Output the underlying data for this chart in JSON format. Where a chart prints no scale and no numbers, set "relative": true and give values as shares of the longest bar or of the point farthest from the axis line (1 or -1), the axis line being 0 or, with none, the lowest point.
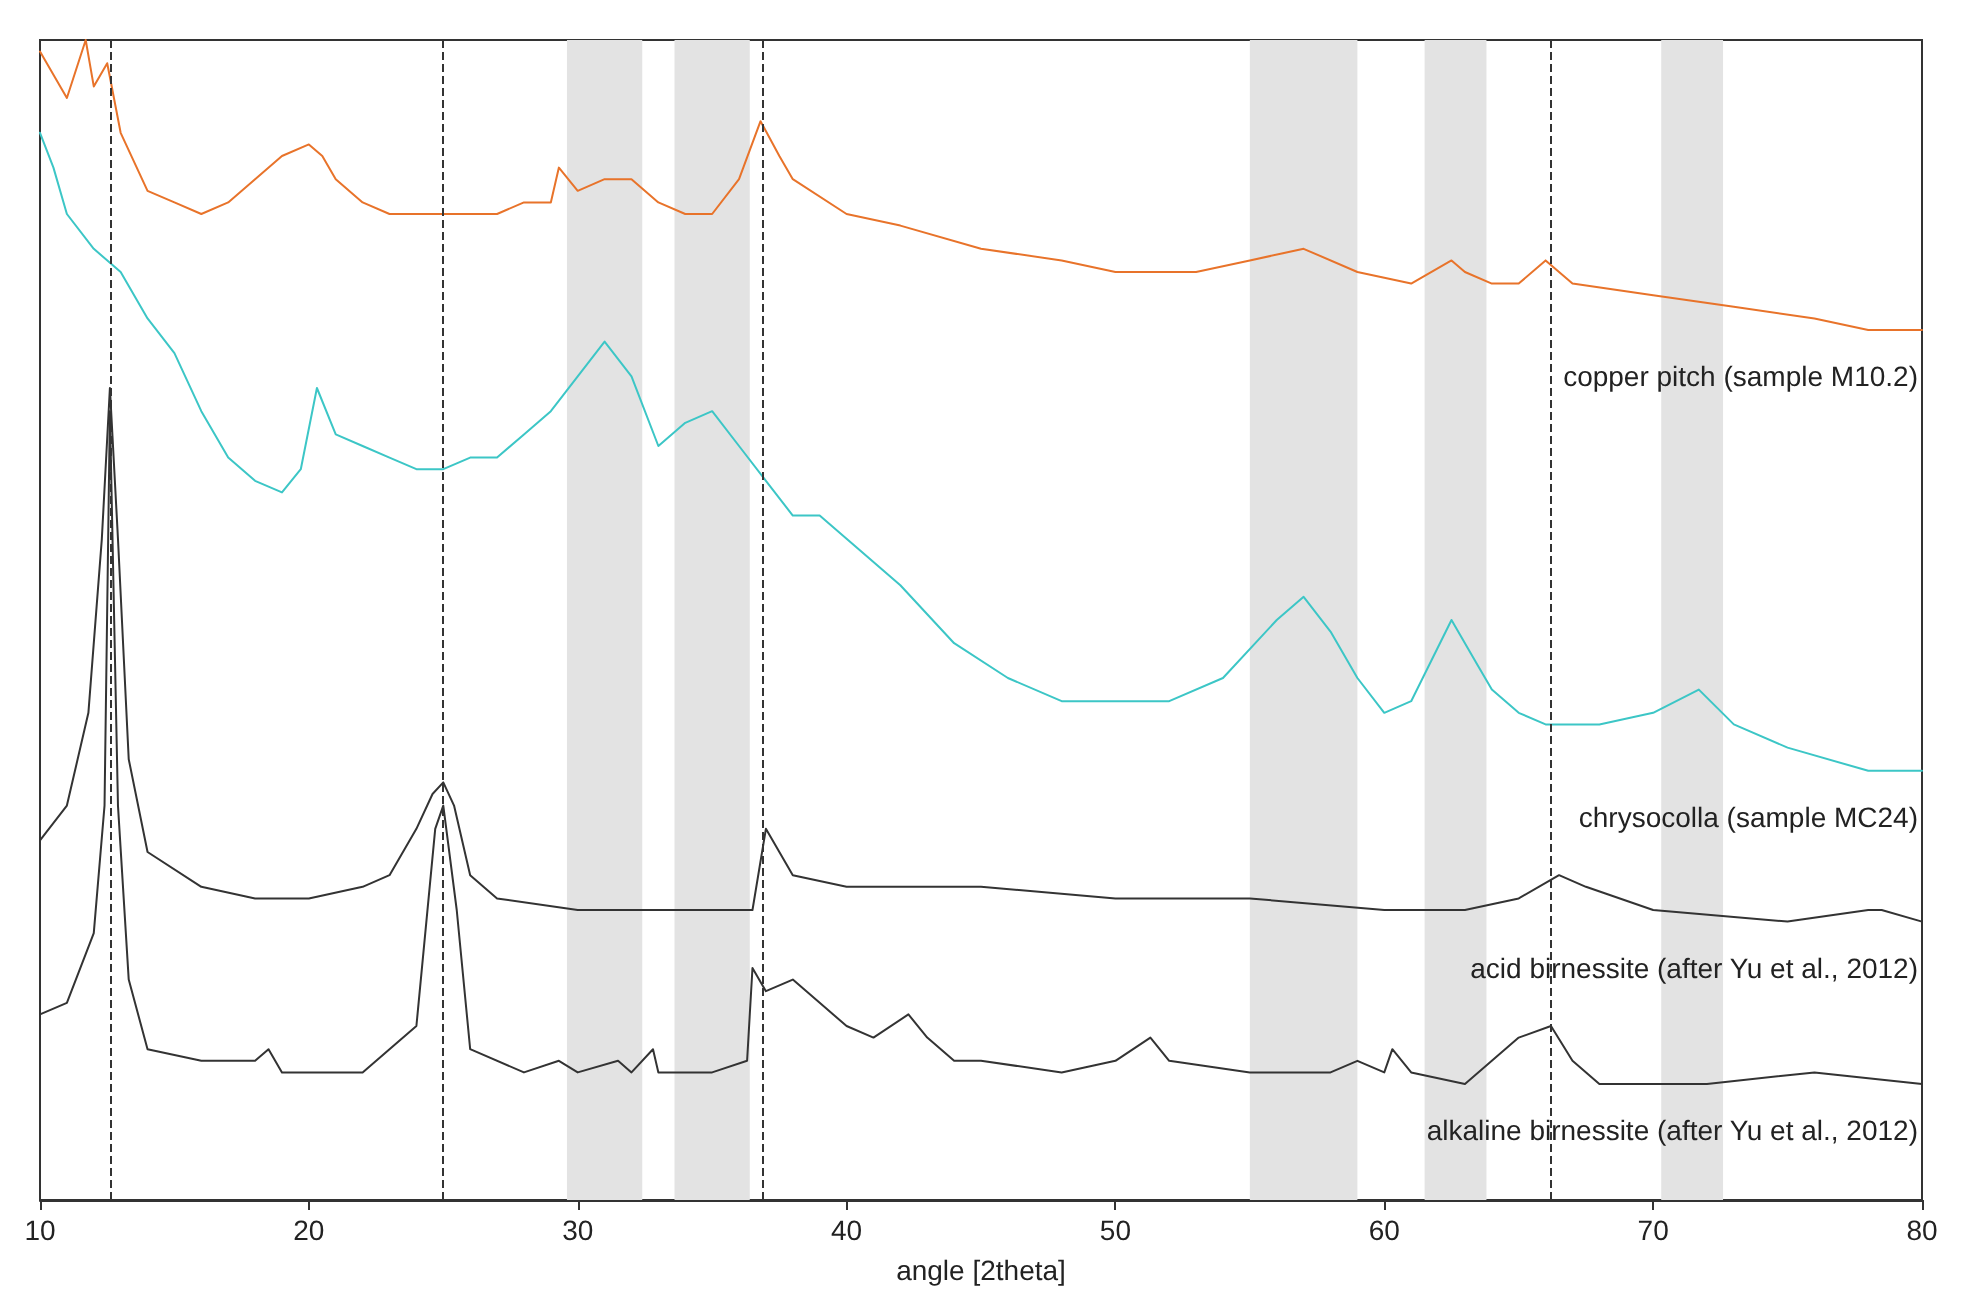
{
  "chart_data": {
    "type": "line",
    "relative": true,
    "xlabel": "angle [2theta]",
    "xlim": [
      10,
      80
    ],
    "xticks": [
      10,
      20,
      30,
      40,
      50,
      60,
      70,
      80
    ],
    "legend": false,
    "grid": false,
    "marker": "none",
    "line_style": "solid",
    "series": [
      {
        "name": "copper pitch (sample M10.2)",
        "color": "#e8732a",
        "x": [
          10,
          10.5,
          11,
          11.7,
          12,
          12.5,
          13,
          14,
          15,
          16,
          17,
          18,
          19,
          20,
          20.5,
          21,
          22,
          23,
          24,
          25,
          26,
          27,
          28,
          29,
          29.3,
          30,
          31,
          32,
          33,
          34,
          35,
          36,
          36.8,
          37.5,
          38,
          40,
          42,
          45,
          48,
          50,
          53,
          55,
          57,
          59,
          61,
          62.5,
          63,
          64,
          65,
          66,
          67,
          70,
          73,
          76,
          78,
          80
        ],
        "values": [
          0.99,
          0.97,
          0.95,
          1,
          0.96,
          0.98,
          0.92,
          0.87,
          0.86,
          0.85,
          0.86,
          0.88,
          0.9,
          0.91,
          0.9,
          0.88,
          0.86,
          0.85,
          0.85,
          0.85,
          0.85,
          0.85,
          0.86,
          0.86,
          0.89,
          0.87,
          0.88,
          0.88,
          0.86,
          0.85,
          0.85,
          0.88,
          0.93,
          0.9,
          0.88,
          0.85,
          0.84,
          0.82,
          0.81,
          0.8,
          0.8,
          0.81,
          0.82,
          0.8,
          0.79,
          0.81,
          0.8,
          0.79,
          0.79,
          0.81,
          0.79,
          0.78,
          0.77,
          0.76,
          0.75,
          0.75
        ]
      },
      {
        "name": "chrysocolla (sample MC24)",
        "color": "#3cc6c6",
        "x": [
          10,
          10.5,
          11,
          12,
          13,
          14,
          15,
          16,
          17,
          18,
          19,
          19.7,
          20.3,
          21,
          22,
          23,
          24,
          25,
          26,
          27,
          28,
          29,
          30,
          31,
          32,
          33,
          34,
          35,
          36,
          37,
          38,
          39,
          40,
          42,
          44,
          46,
          48,
          50,
          52,
          54,
          56,
          57,
          58,
          59,
          60,
          61,
          62.5,
          63.5,
          64,
          65,
          66,
          68,
          70,
          71.7,
          73,
          75,
          78,
          80
        ],
        "values": [
          0.92,
          0.89,
          0.85,
          0.82,
          0.8,
          0.76,
          0.73,
          0.68,
          0.64,
          0.62,
          0.61,
          0.63,
          0.7,
          0.66,
          0.65,
          0.64,
          0.63,
          0.63,
          0.64,
          0.64,
          0.66,
          0.68,
          0.71,
          0.74,
          0.71,
          0.65,
          0.67,
          0.68,
          0.65,
          0.62,
          0.59,
          0.59,
          0.57,
          0.53,
          0.48,
          0.45,
          0.43,
          0.43,
          0.43,
          0.45,
          0.5,
          0.52,
          0.49,
          0.45,
          0.42,
          0.43,
          0.5,
          0.46,
          0.44,
          0.42,
          0.41,
          0.41,
          0.42,
          0.44,
          0.41,
          0.39,
          0.37,
          0.37
        ]
      },
      {
        "name": "acid birnessite (after Yu et al., 2012)",
        "color": "#333333",
        "x": [
          10,
          11,
          11.8,
          12.3,
          12.6,
          12.9,
          13.3,
          14,
          16,
          18,
          20,
          22,
          23,
          24,
          24.6,
          25,
          25.4,
          26,
          27,
          30,
          35,
          36.5,
          37,
          37.5,
          38,
          40,
          45,
          50,
          55,
          60,
          63,
          65,
          66.5,
          67.5,
          70,
          75,
          78,
          78.5,
          80
        ],
        "values": [
          0.31,
          0.34,
          0.42,
          0.57,
          0.7,
          0.57,
          0.38,
          0.3,
          0.27,
          0.26,
          0.26,
          0.27,
          0.28,
          0.32,
          0.35,
          0.36,
          0.34,
          0.28,
          0.26,
          0.25,
          0.25,
          0.25,
          0.32,
          0.3,
          0.28,
          0.27,
          0.27,
          0.26,
          0.26,
          0.25,
          0.25,
          0.26,
          0.28,
          0.27,
          0.25,
          0.24,
          0.25,
          0.25,
          0.24
        ]
      },
      {
        "name": "alkaline birnessite (after Yu et al., 2012)",
        "color": "#333333",
        "x": [
          10,
          11,
          12,
          12.4,
          12.6,
          12.9,
          13.3,
          14,
          16,
          18,
          18.5,
          19,
          22,
          24,
          24.7,
          25,
          25.5,
          26,
          28,
          29.3,
          30,
          31.5,
          32,
          32.8,
          33,
          35,
          36.3,
          36.5,
          37,
          38,
          39,
          40,
          41,
          42.3,
          43,
          44,
          45,
          48,
          50,
          51.3,
          52,
          55,
          58,
          59,
          60,
          60.3,
          61,
          63,
          64,
          65,
          66.2,
          67,
          68,
          72,
          76,
          80
        ],
        "values": [
          0.16,
          0.17,
          0.23,
          0.34,
          0.68,
          0.34,
          0.19,
          0.13,
          0.12,
          0.12,
          0.13,
          0.11,
          0.11,
          0.15,
          0.32,
          0.34,
          0.25,
          0.13,
          0.11,
          0.12,
          0.11,
          0.12,
          0.11,
          0.13,
          0.11,
          0.11,
          0.12,
          0.2,
          0.18,
          0.19,
          0.17,
          0.15,
          0.14,
          0.16,
          0.14,
          0.12,
          0.12,
          0.11,
          0.12,
          0.14,
          0.12,
          0.11,
          0.11,
          0.12,
          0.11,
          0.13,
          0.11,
          0.1,
          0.12,
          0.14,
          0.15,
          0.12,
          0.1,
          0.1,
          0.11,
          0.1
        ]
      }
    ],
    "ref_lines": [
      {
        "axis": "x",
        "value": 12.6,
        "color": "#333333",
        "line_style": "dashed"
      },
      {
        "axis": "x",
        "value": 25,
        "color": "#333333",
        "line_style": "dashed"
      },
      {
        "axis": "x",
        "value": 36.9,
        "color": "#333333",
        "line_style": "dashed"
      },
      {
        "axis": "x",
        "value": 66.2,
        "color": "#333333",
        "line_style": "dashed"
      }
    ],
    "bands": [
      {
        "axis": "x",
        "from": 29.6,
        "to": 32.4,
        "color": "#e3e3e3"
      },
      {
        "axis": "x",
        "from": 33.6,
        "to": 36.4,
        "color": "#e3e3e3"
      },
      {
        "axis": "x",
        "from": 55,
        "to": 59,
        "color": "#e3e3e3"
      },
      {
        "axis": "x",
        "from": 61.5,
        "to": 63.8,
        "color": "#e3e3e3"
      },
      {
        "axis": "x",
        "from": 70.3,
        "to": 72.6,
        "color": "#e3e3e3"
      }
    ]
  }
}
